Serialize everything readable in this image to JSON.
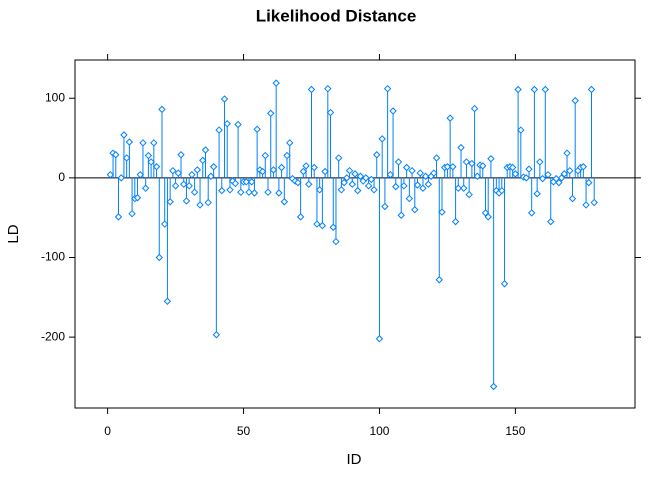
{
  "chart_data": {
    "type": "stem",
    "title": "Likelihood Distance",
    "x_label": "ID",
    "y_label": "LD",
    "color": "#0080ff",
    "hline": 0,
    "xlim": [
      -12,
      194
    ],
    "xticks": [
      0,
      50,
      100,
      150
    ],
    "ylim": [
      -289,
      148
    ],
    "yticks": [
      -200,
      -100,
      0,
      100
    ],
    "x": [
      1,
      2,
      3,
      4,
      5,
      6,
      7,
      8,
      9,
      10,
      11,
      12,
      13,
      14,
      15,
      16,
      17,
      18,
      19,
      20,
      21,
      22,
      23,
      24,
      25,
      26,
      27,
      28,
      29,
      30,
      31,
      32,
      33,
      34,
      35,
      36,
      37,
      38,
      39,
      40,
      41,
      42,
      43,
      44,
      45,
      46,
      47,
      48,
      49,
      50,
      51,
      52,
      53,
      54,
      55,
      56,
      57,
      58,
      59,
      60,
      61,
      62,
      63,
      64,
      65,
      66,
      67,
      68,
      69,
      70,
      71,
      72,
      73,
      74,
      75,
      76,
      77,
      78,
      79,
      80,
      81,
      82,
      83,
      84,
      85,
      86,
      87,
      88,
      89,
      90,
      91,
      92,
      93,
      94,
      95,
      96,
      97,
      98,
      99,
      100,
      101,
      102,
      103,
      104,
      105,
      106,
      107,
      108,
      109,
      110,
      111,
      112,
      113,
      114,
      115,
      116,
      117,
      118,
      119,
      120,
      121,
      122,
      123,
      124,
      125,
      126,
      127,
      128,
      129,
      130,
      131,
      132,
      133,
      134,
      135,
      136,
      137,
      138,
      139,
      140,
      141,
      142,
      143,
      144,
      145,
      146,
      147,
      148,
      149,
      150,
      151,
      152,
      153,
      154,
      155,
      156,
      157,
      158,
      159,
      160,
      161,
      162,
      163,
      164,
      165,
      166,
      167,
      168,
      169,
      170,
      171,
      172,
      173,
      174,
      175,
      176,
      177,
      178,
      179
    ],
    "values": [
      4,
      31,
      29,
      -49,
      0,
      54,
      25,
      45,
      -45,
      -26,
      -25,
      4,
      44,
      -13,
      28,
      20,
      44,
      14,
      -100,
      86,
      -58,
      -155,
      -30,
      9,
      -10,
      6,
      29,
      -8,
      -29,
      -10,
      4,
      -18,
      10,
      -34,
      22,
      35,
      -31,
      2,
      14,
      -197,
      60,
      -16,
      99,
      68,
      -15,
      -4,
      -7,
      67,
      -18,
      -5,
      -5,
      -18,
      -5,
      -19,
      61,
      10,
      8,
      28,
      -18,
      81,
      10,
      119,
      -19,
      13,
      -30,
      28,
      44,
      -1,
      -4,
      -6,
      -49,
      8,
      15,
      -8,
      111,
      13,
      -58,
      -15,
      -60,
      8,
      112,
      82,
      -62,
      -80,
      25,
      -15,
      -6,
      0,
      9,
      -8,
      5,
      -16,
      2,
      -4,
      0,
      -10,
      -2,
      -15,
      29,
      -202,
      49,
      -36,
      112,
      4,
      84,
      -11,
      20,
      -47,
      -10,
      13,
      -26,
      9,
      -40,
      -9,
      6,
      -13,
      2,
      -8,
      2,
      6,
      25,
      -128,
      -43,
      13,
      14,
      75,
      14,
      -55,
      -13,
      38,
      -13,
      20,
      -21,
      18,
      87,
      2,
      16,
      15,
      -44,
      -49,
      24,
      -262,
      -16,
      -19,
      -16,
      -133,
      13,
      14,
      13,
      5,
      111,
      60,
      1,
      0,
      11,
      -44,
      111,
      -20,
      20,
      -1,
      111,
      4,
      -55,
      -5,
      -1,
      -6,
      0,
      5,
      31,
      9,
      -26,
      97,
      9,
      13,
      14,
      -34,
      -6,
      111,
      -31
    ]
  }
}
